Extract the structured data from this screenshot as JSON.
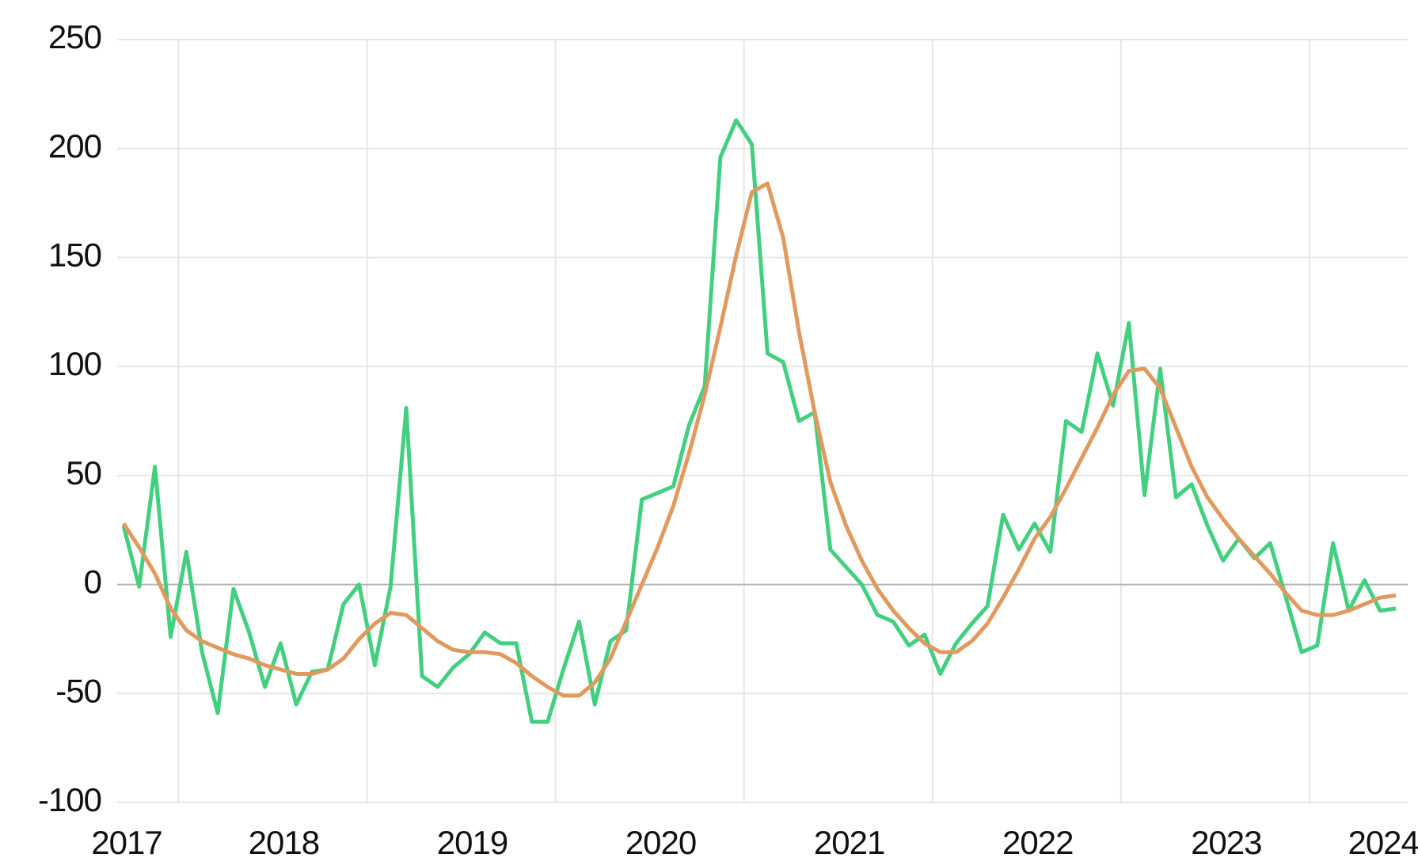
{
  "chart_data": {
    "type": "line",
    "categories": [
      "2017",
      null,
      null,
      null,
      null,
      null,
      null,
      null,
      null,
      null,
      "2018",
      null,
      null,
      null,
      null,
      null,
      null,
      null,
      null,
      null,
      null,
      null,
      "2019",
      null,
      null,
      null,
      null,
      null,
      null,
      null,
      null,
      null,
      null,
      null,
      "2020",
      null,
      null,
      null,
      null,
      null,
      null,
      null,
      null,
      null,
      null,
      null,
      "2021",
      null,
      null,
      null,
      null,
      null,
      null,
      null,
      null,
      null,
      null,
      null,
      "2022",
      null,
      null,
      null,
      null,
      null,
      null,
      null,
      null,
      null,
      null,
      null,
      "2023",
      null,
      null,
      null,
      null,
      null,
      null,
      null,
      null,
      null,
      "2024",
      null
    ],
    "series": [
      {
        "color": "#43cf80",
        "values": [
          27,
          -1,
          54,
          -24,
          15,
          -31,
          -59,
          -2,
          -22,
          -47,
          -27,
          -55,
          -40,
          -39,
          -9,
          0,
          -37,
          -1,
          81,
          -42,
          -47,
          -38,
          -32,
          -22,
          -27,
          -27,
          -63,
          -63,
          -39,
          -17,
          -55,
          -26,
          -21,
          39,
          42,
          45,
          73,
          91,
          196,
          213,
          202,
          106,
          102,
          75,
          79,
          16,
          8,
          0,
          -14,
          -17,
          -28,
          -23,
          -41,
          -27,
          -18,
          -10,
          32,
          16,
          28,
          15,
          75,
          70,
          106,
          82,
          120,
          41,
          99,
          40,
          46,
          27,
          11,
          21,
          12,
          19,
          -6,
          -31,
          -28,
          19,
          -12,
          2,
          -12,
          -11
        ]
      },
      {
        "color": "#e0995e",
        "values": [
          28,
          17,
          5,
          -11,
          -21,
          -26,
          -29,
          -32,
          -34,
          -37,
          -39,
          -41,
          -41,
          -39,
          -34,
          -25,
          -18,
          -13,
          -14,
          -20,
          -26,
          -30,
          -31,
          -31,
          -32,
          -36,
          -42,
          -47,
          -51,
          -51,
          -45,
          -34,
          -17,
          0,
          17,
          36,
          60,
          87,
          118,
          151,
          180,
          184,
          159,
          116,
          79,
          47,
          27,
          11,
          -2,
          -12,
          -20,
          -27,
          -31,
          -31,
          -26,
          -18,
          -6,
          7,
          21,
          31,
          44,
          58,
          72,
          87,
          98,
          99,
          90,
          72,
          54,
          40,
          30,
          21,
          13,
          5,
          -4,
          -12,
          -14,
          -14,
          -12,
          -9,
          -6,
          -5
        ]
      }
    ],
    "ylim": [
      -100,
      250
    ],
    "yticks": [
      -100,
      -50,
      0,
      50,
      100,
      150,
      200,
      250
    ],
    "grid": true
  }
}
